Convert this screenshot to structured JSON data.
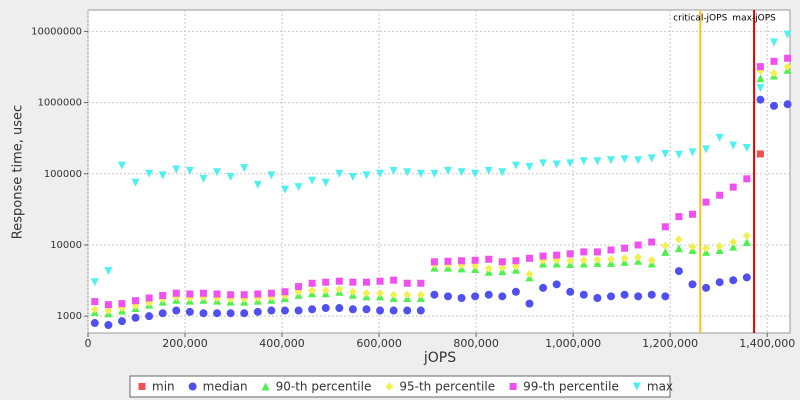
{
  "chart_data": {
    "type": "scatter",
    "x_label": "jOPS",
    "y_label": "Response time, usec",
    "log_y": true,
    "grid": true,
    "legend": "bottom",
    "xlim": [
      0,
      1447000
    ],
    "ylim": [
      580,
      20000000
    ],
    "xticks": [
      0,
      {
        "value": 200000,
        "label": "200,000"
      },
      {
        "value": 400000,
        "label": "400,000"
      },
      {
        "value": 600000,
        "label": "600,000"
      },
      {
        "value": 800000,
        "label": "800,000"
      },
      {
        "value": 1000000,
        "label": "1,000,000"
      },
      {
        "value": 1200000,
        "label": "1,200,000"
      },
      {
        "value": 1400000,
        "label": "1,400,000"
      }
    ],
    "yticks": [
      1000,
      10000,
      100000,
      1000000,
      10000000
    ],
    "x": [
      14000,
      42000,
      70000,
      98000,
      126000,
      154000,
      182000,
      210000,
      238000,
      266000,
      294000,
      322000,
      350000,
      378000,
      406000,
      434000,
      462000,
      490000,
      518000,
      546000,
      574000,
      602000,
      630000,
      658000,
      686000,
      714000,
      742000,
      770000,
      798000,
      826000,
      854000,
      882000,
      910000,
      938000,
      966000,
      994000,
      1022000,
      1050000,
      1078000,
      1106000,
      1134000,
      1162000,
      1190000,
      1218000,
      1246000,
      1274000,
      1302000,
      1330000,
      1358000,
      1386000,
      1414000,
      1442000
    ],
    "series": [
      {
        "name": "min",
        "color": "#f05050",
        "marker": "square",
        "values": [
          null,
          null,
          null,
          null,
          null,
          null,
          null,
          null,
          null,
          null,
          null,
          null,
          null,
          null,
          null,
          null,
          null,
          null,
          null,
          null,
          null,
          null,
          null,
          null,
          null,
          null,
          null,
          null,
          null,
          null,
          null,
          null,
          null,
          null,
          null,
          null,
          null,
          null,
          null,
          null,
          null,
          null,
          null,
          null,
          null,
          null,
          null,
          null,
          null,
          190000,
          null,
          null
        ]
      },
      {
        "name": "median",
        "color": "#5050f0",
        "marker": "circle",
        "values": [
          800,
          750,
          850,
          950,
          1000,
          1100,
          1200,
          1150,
          1100,
          1100,
          1100,
          1100,
          1150,
          1200,
          1200,
          1200,
          1250,
          1300,
          1300,
          1250,
          1250,
          1200,
          1200,
          1200,
          1200,
          2000,
          1900,
          1800,
          1900,
          2000,
          1900,
          2200,
          1500,
          2500,
          2800,
          2200,
          2000,
          1800,
          1900,
          2000,
          1900,
          2000,
          1900,
          4300,
          2800,
          2500,
          3000,
          3200,
          3500,
          1100000,
          900000,
          950000
        ]
      },
      {
        "name": "90-th percentile",
        "color": "#50f050",
        "marker": "triangle",
        "values": [
          1150,
          1100,
          1200,
          1300,
          1450,
          1600,
          1700,
          1650,
          1700,
          1650,
          1600,
          1600,
          1650,
          1700,
          1800,
          2000,
          2100,
          2100,
          2200,
          2000,
          1900,
          1900,
          1800,
          1800,
          1800,
          4800,
          4800,
          4700,
          4600,
          4200,
          4300,
          4500,
          3500,
          5500,
          5500,
          5400,
          5500,
          5600,
          5600,
          5800,
          6000,
          5500,
          8000,
          9000,
          8500,
          8000,
          8500,
          9500,
          11000,
          2200000,
          2400000,
          2900000
        ]
      },
      {
        "name": "95-th percentile",
        "color": "#f0f050",
        "marker": "diamond",
        "values": [
          1250,
          1200,
          1300,
          1400,
          1550,
          1750,
          1850,
          1800,
          1850,
          1800,
          1750,
          1750,
          1800,
          1850,
          1950,
          2200,
          2300,
          2300,
          2400,
          2200,
          2100,
          2100,
          2000,
          2000,
          2000,
          5300,
          5300,
          5200,
          5100,
          4700,
          4800,
          5000,
          3900,
          6100,
          6100,
          6000,
          6100,
          6200,
          6300,
          6500,
          6700,
          6100,
          9800,
          12000,
          9500,
          9000,
          9600,
          11000,
          13500,
          2800000,
          2600000,
          3200000
        ]
      },
      {
        "name": "99-th percentile",
        "color": "#f050f0",
        "marker": "square",
        "values": [
          1600,
          1450,
          1500,
          1650,
          1800,
          1950,
          2100,
          2050,
          2100,
          2050,
          2000,
          2000,
          2050,
          2100,
          2200,
          2600,
          2900,
          3000,
          3100,
          3000,
          3000,
          3100,
          3200,
          2900,
          2900,
          5800,
          5900,
          6000,
          6100,
          6300,
          5800,
          6000,
          6500,
          7000,
          7200,
          7500,
          8000,
          8000,
          8500,
          9000,
          10000,
          11000,
          18000,
          25000,
          27000,
          40000,
          50000,
          65000,
          85000,
          3200000,
          3800000,
          4200000
        ]
      },
      {
        "name": "max",
        "color": "#50f0f0",
        "marker": "triangle-down",
        "values": [
          3000,
          4300,
          130000,
          75000,
          100000,
          95000,
          115000,
          110000,
          85000,
          105000,
          90000,
          120000,
          70000,
          95000,
          60000,
          65000,
          80000,
          75000,
          100000,
          90000,
          95000,
          100000,
          110000,
          105000,
          100000,
          100000,
          110000,
          105000,
          100000,
          110000,
          105000,
          130000,
          125000,
          140000,
          135000,
          140000,
          150000,
          150000,
          155000,
          160000,
          155000,
          165000,
          190000,
          185000,
          200000,
          220000,
          320000,
          250000,
          230000,
          1600000,
          7000000,
          9000000
        ]
      }
    ],
    "reference_lines": [
      {
        "label": "critical-jOPS",
        "x": 1262000,
        "color": "#ffc020"
      },
      {
        "label": "max-jOPS",
        "x": 1373000,
        "color": "#e00000"
      }
    ]
  }
}
